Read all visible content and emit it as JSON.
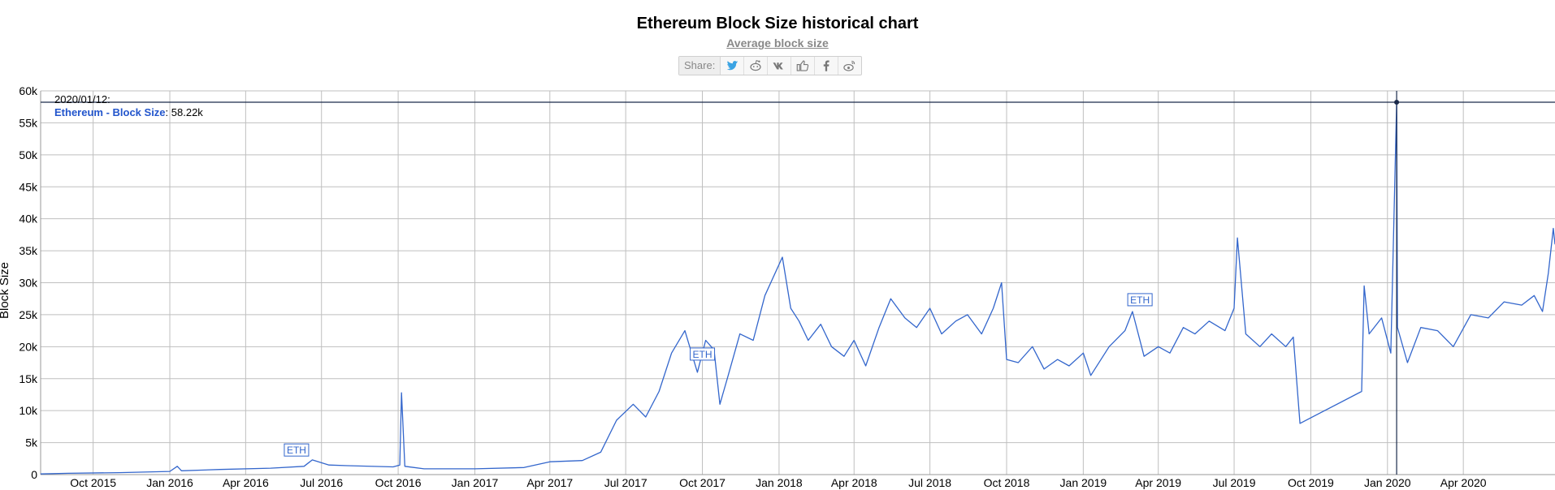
{
  "page": {
    "title": "Ethereum Block Size historical chart",
    "subtitle": "Average block size"
  },
  "share": {
    "label": "Share:",
    "buttons": [
      {
        "name": "twitter-icon",
        "glyph": "twitter"
      },
      {
        "name": "reddit-icon",
        "glyph": "reddit"
      },
      {
        "name": "vk-icon",
        "glyph": "vk"
      },
      {
        "name": "like-icon",
        "glyph": "like"
      },
      {
        "name": "facebook-icon",
        "glyph": "facebook"
      },
      {
        "name": "weibo-icon",
        "glyph": "weibo"
      }
    ]
  },
  "tooltip": {
    "date": "2020/01/12:",
    "series": "Ethereum - Block Size",
    "value": ": 58.22k"
  },
  "chart_data": {
    "type": "line",
    "title": "Ethereum Block Size historical chart",
    "subtitle": "Average block size",
    "ylabel": "Block Size",
    "xlabel": "",
    "ylim": [
      0,
      60000
    ],
    "yticks": [
      0,
      5000,
      10000,
      15000,
      20000,
      25000,
      30000,
      35000,
      40000,
      45000,
      50000,
      55000,
      60000
    ],
    "ytick_labels": [
      "0",
      "5k",
      "10k",
      "15k",
      "20k",
      "25k",
      "30k",
      "35k",
      "40k",
      "45k",
      "50k",
      "55k",
      "60k"
    ],
    "xlim": [
      "2015-07-30",
      "2020-07-20"
    ],
    "xticks": [
      "2015-10-01",
      "2016-01-01",
      "2016-04-01",
      "2016-07-01",
      "2016-10-01",
      "2017-01-01",
      "2017-04-01",
      "2017-07-01",
      "2017-10-01",
      "2018-01-01",
      "2018-04-01",
      "2018-07-01",
      "2018-10-01",
      "2019-01-01",
      "2019-04-01",
      "2019-07-01",
      "2019-10-01",
      "2020-01-01",
      "2020-04-01"
    ],
    "xtick_labels": [
      "Oct 2015",
      "Jan 2016",
      "Apr 2016",
      "Jul 2016",
      "Oct 2016",
      "Jan 2017",
      "Apr 2017",
      "Jul 2017",
      "Oct 2017",
      "Jan 2018",
      "Apr 2018",
      "Jul 2018",
      "Oct 2018",
      "Jan 2019",
      "Apr 2019",
      "Jul 2019",
      "Oct 2019",
      "Jan 2020",
      "Apr 2020"
    ],
    "grid": true,
    "colors": {
      "line": "#3366cc",
      "crosshair": "#1a2a4a",
      "grid": "#bfbfbf"
    },
    "series": [
      {
        "name": "Ethereum - Block Size",
        "x": [
          "2015-07-30",
          "2015-09-01",
          "2015-11-01",
          "2016-01-01",
          "2016-01-10",
          "2016-01-15",
          "2016-03-01",
          "2016-05-01",
          "2016-06-10",
          "2016-06-20",
          "2016-07-10",
          "2016-08-01",
          "2016-09-25",
          "2016-10-03",
          "2016-10-05",
          "2016-10-09",
          "2016-11-01",
          "2017-01-01",
          "2017-03-01",
          "2017-04-01",
          "2017-05-10",
          "2017-06-01",
          "2017-06-20",
          "2017-07-10",
          "2017-07-25",
          "2017-08-10",
          "2017-08-25",
          "2017-09-10",
          "2017-09-25",
          "2017-10-05",
          "2017-10-15",
          "2017-10-22",
          "2017-11-01",
          "2017-11-15",
          "2017-12-01",
          "2017-12-15",
          "2018-01-05",
          "2018-01-15",
          "2018-01-25",
          "2018-02-05",
          "2018-02-20",
          "2018-03-05",
          "2018-03-20",
          "2018-04-01",
          "2018-04-15",
          "2018-05-01",
          "2018-05-15",
          "2018-06-01",
          "2018-06-15",
          "2018-07-01",
          "2018-07-15",
          "2018-08-01",
          "2018-08-15",
          "2018-09-01",
          "2018-09-15",
          "2018-09-25",
          "2018-10-01",
          "2018-10-15",
          "2018-11-01",
          "2018-11-15",
          "2018-12-01",
          "2018-12-15",
          "2019-01-01",
          "2019-01-10",
          "2019-02-01",
          "2019-02-20",
          "2019-03-01",
          "2019-03-15",
          "2019-04-01",
          "2019-04-15",
          "2019-05-01",
          "2019-05-15",
          "2019-06-01",
          "2019-06-20",
          "2019-07-01",
          "2019-07-05",
          "2019-07-15",
          "2019-08-01",
          "2019-08-15",
          "2019-09-01",
          "2019-09-10",
          "2019-09-18",
          "2019-12-01",
          "2019-12-04",
          "2019-12-10",
          "2019-12-25",
          "2020-01-05",
          "2020-01-12",
          "2020-01-13",
          "2020-01-25",
          "2020-02-10",
          "2020-03-01",
          "2020-03-20",
          "2020-04-10",
          "2020-05-01",
          "2020-05-20",
          "2020-06-10",
          "2020-06-25",
          "2020-07-05",
          "2020-07-12",
          "2020-07-18",
          "2020-07-20"
        ],
        "y": [
          100,
          200,
          300,
          500,
          1300,
          600,
          800,
          1000,
          1300,
          2300,
          1500,
          1400,
          1200,
          1500,
          12800,
          1300,
          900,
          900,
          1100,
          2000,
          2200,
          3500,
          8500,
          11000,
          9000,
          13000,
          19000,
          22500,
          16000,
          21000,
          19500,
          11000,
          15500,
          22000,
          21000,
          28000,
          34000,
          26000,
          24000,
          21000,
          23500,
          20000,
          18500,
          21000,
          17000,
          23000,
          27500,
          24500,
          23000,
          26000,
          22000,
          24000,
          25000,
          22000,
          26000,
          30000,
          18000,
          17500,
          20000,
          16500,
          18000,
          17000,
          19000,
          15500,
          20000,
          22500,
          25500,
          18500,
          20000,
          19000,
          23000,
          22000,
          24000,
          22500,
          26000,
          37000,
          22000,
          20000,
          22000,
          20000,
          21500,
          8000,
          13000,
          29500,
          22000,
          24500,
          19000,
          58220,
          23000,
          17500,
          23000,
          22500,
          20000,
          25000,
          24500,
          27000,
          26500,
          28000,
          25500,
          31500,
          38500,
          36000
        ]
      }
    ],
    "annotations": [
      {
        "label": "ETH",
        "x": "2016-06-01",
        "y": 1500
      },
      {
        "label": "ETH",
        "x": "2017-10-01",
        "y": 16500
      },
      {
        "label": "ETH",
        "x": "2019-03-10",
        "y": 25000
      }
    ],
    "crosshair": {
      "x": "2020-01-12",
      "y": 58220
    }
  }
}
